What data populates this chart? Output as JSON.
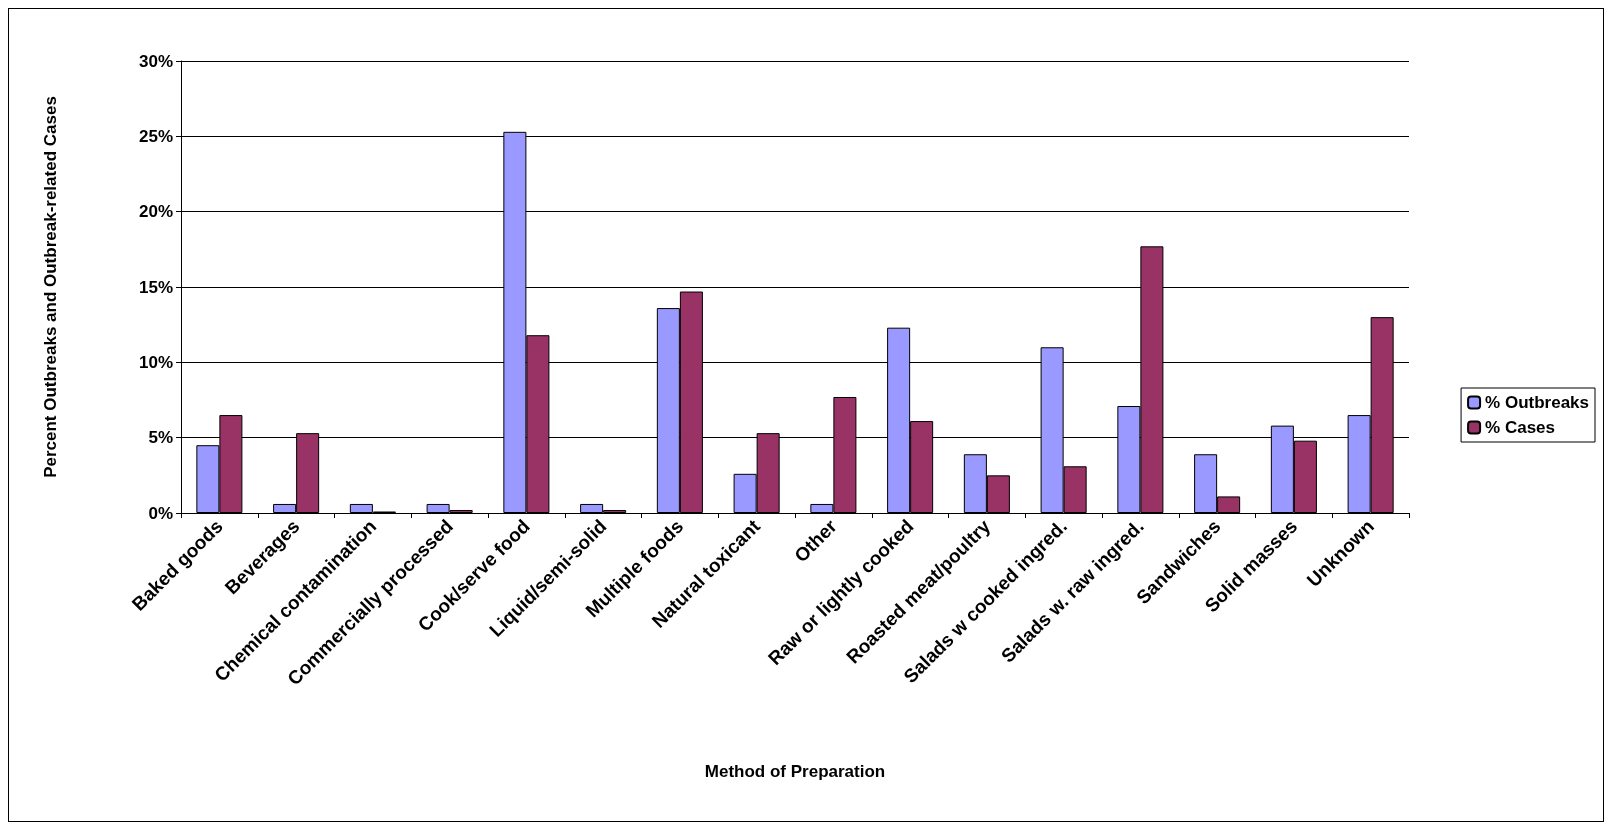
{
  "chart_data": {
    "type": "bar",
    "xlabel": "Method of Preparation",
    "ylabel": "Percent Outbreaks and Outbreak-related Cases",
    "categories": [
      "Baked goods",
      "Beverages",
      "Chemical contamination",
      "Commercially processed",
      "Cook/serve food",
      "Liquid/semi-solid",
      "Multiple foods",
      "Natural toxicant",
      "Other",
      "Raw or lightly cooked",
      "Roasted meat/poultry",
      "Salads w cooked ingred.",
      "Salads w. raw ingred.",
      "Sandwiches",
      "Solid masses",
      "Unknown"
    ],
    "series": [
      {
        "name": "% Outbreaks",
        "color": "#9999ff",
        "values": [
          4.5,
          0.6,
          0.6,
          0.6,
          25.3,
          0.6,
          13.6,
          2.6,
          0.6,
          12.3,
          3.9,
          11.0,
          7.1,
          3.9,
          5.8,
          6.5
        ]
      },
      {
        "name": "% Cases",
        "color": "#993366",
        "values": [
          6.5,
          5.3,
          0.1,
          0.2,
          11.8,
          0.2,
          14.7,
          5.3,
          7.7,
          6.1,
          2.5,
          3.1,
          17.7,
          1.1,
          4.8,
          13.0
        ]
      }
    ],
    "ylim": [
      0,
      30
    ],
    "yticks": [
      {
        "value": 0,
        "label": "0%"
      },
      {
        "value": 5,
        "label": "5%"
      },
      {
        "value": 10,
        "label": "10%"
      },
      {
        "value": 15,
        "label": "15%"
      },
      {
        "value": 20,
        "label": "20%"
      },
      {
        "value": 25,
        "label": "25%"
      },
      {
        "value": 30,
        "label": "30%"
      }
    ],
    "grid": "y",
    "legend": "right"
  }
}
